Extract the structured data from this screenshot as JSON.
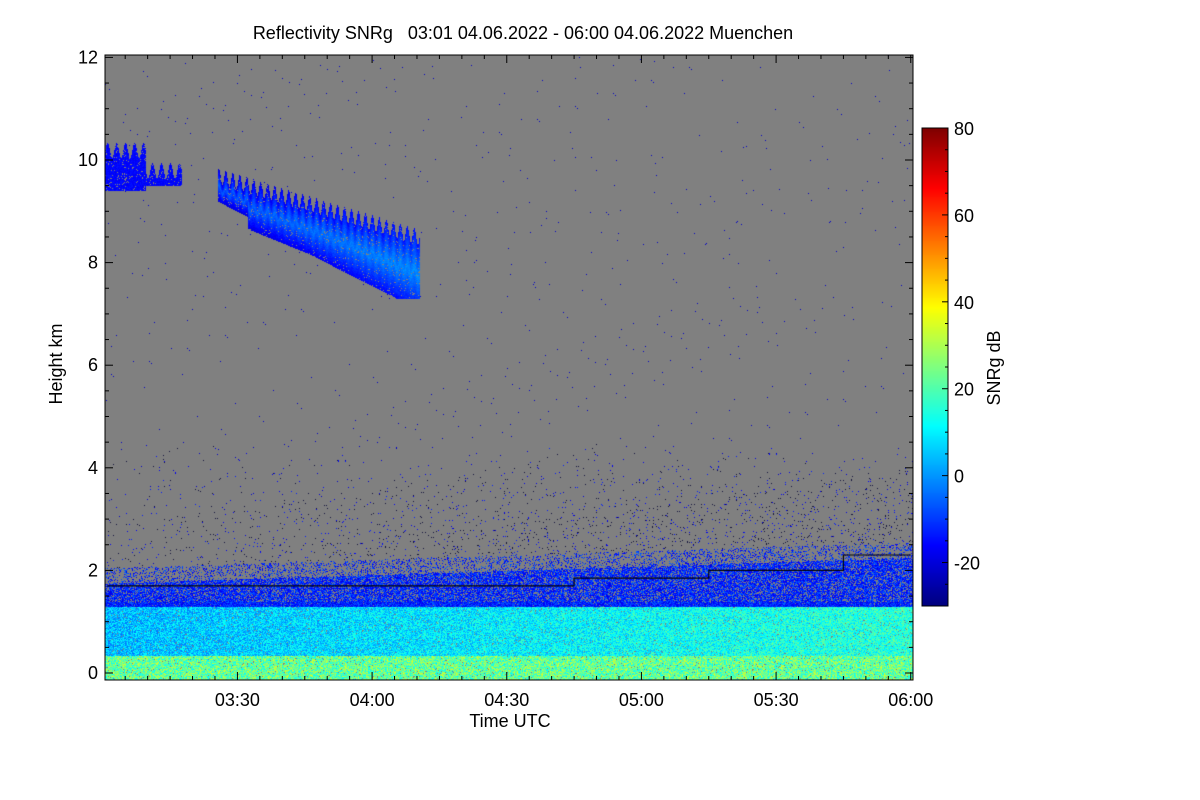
{
  "chart_data": {
    "type": "heatmap",
    "title": "Reflectivity SNRg   03:01 04.06.2022 - 06:00 04.06.2022 Muenchen",
    "xlabel": "Time UTC",
    "ylabel": "Height km",
    "x_range_minutes_utc": [
      181,
      360
    ],
    "x_ticks": [
      "03:30",
      "04:00",
      "04:30",
      "05:00",
      "05:30",
      "06:00"
    ],
    "x_tick_minutes": [
      210,
      240,
      270,
      300,
      330,
      360
    ],
    "ylim": [
      0,
      12
    ],
    "y_ticks": [
      0,
      2,
      4,
      6,
      8,
      10,
      12
    ],
    "background": "#808080",
    "colorbar": {
      "label": "SNRg dB",
      "range": [
        -30,
        80
      ],
      "ticks": [
        -20,
        0,
        20,
        40,
        60,
        80
      ],
      "colormap": "jet"
    },
    "features": [
      {
        "name": "cirrus-1",
        "time_min": [
          181,
          198
        ],
        "height_km": [
          9.4,
          10.2
        ],
        "snr_db": -18
      },
      {
        "name": "cirrus-2",
        "time_min": [
          206,
          250
        ],
        "height_km": [
          7.3,
          9.7
        ],
        "snr_db": -10
      },
      {
        "name": "boundary-layer-echo",
        "time_min": [
          181,
          360
        ],
        "height_km": [
          0,
          2.2
        ],
        "snr_db": 5
      }
    ],
    "boundary_line": {
      "color": "#000000",
      "steps": [
        {
          "from": 181,
          "to": 285,
          "height_km": 1.7
        },
        {
          "from": 285,
          "to": 315,
          "height_km": 1.85
        },
        {
          "from": 315,
          "to": 345,
          "height_km": 2.0
        },
        {
          "from": 345,
          "to": 360,
          "height_km": 2.3
        }
      ]
    }
  }
}
